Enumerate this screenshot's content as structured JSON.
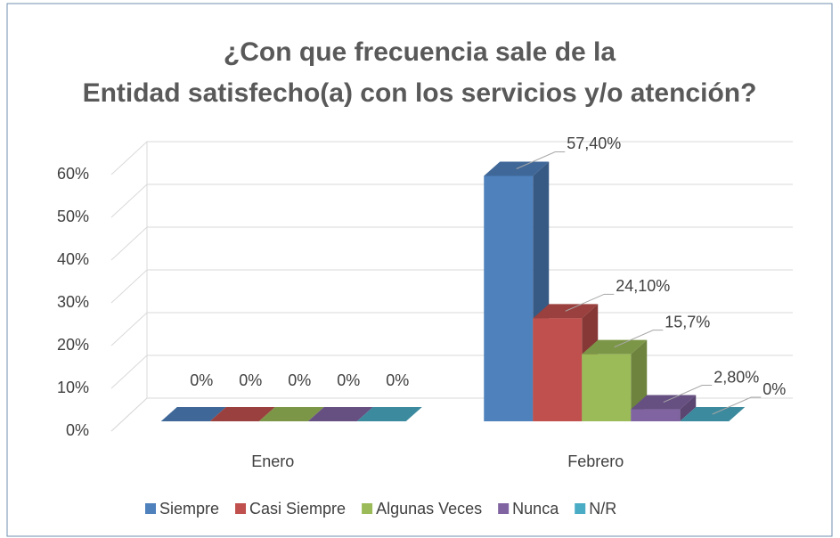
{
  "chart_data": {
    "type": "bar3d",
    "title": "¿Con que frecuencia sale de la Entidad satisfecho(a) con los servicios y/o atención?",
    "categories": [
      "Enero",
      "Febrero"
    ],
    "series": [
      {
        "name": "Siempre",
        "color": "#4f81bd",
        "values": [
          0,
          57.4
        ],
        "value_labels": [
          "0%",
          "57,40%"
        ]
      },
      {
        "name": "Casi Siempre",
        "color": "#c0504d",
        "values": [
          0,
          24.1
        ],
        "value_labels": [
          "0%",
          "24,10%"
        ]
      },
      {
        "name": "Algunas Veces",
        "color": "#9bbb59",
        "values": [
          0,
          15.7
        ],
        "value_labels": [
          "0%",
          "15,7%"
        ]
      },
      {
        "name": "Nunca",
        "color": "#8064a2",
        "values": [
          0,
          2.8
        ],
        "value_labels": [
          "0%",
          "2,80%"
        ]
      },
      {
        "name": "N/R",
        "color": "#4bacc6",
        "values": [
          0,
          0
        ],
        "value_labels": [
          "0%",
          "0%"
        ]
      }
    ],
    "ylim": [
      0,
      60
    ],
    "yticks": [
      {
        "value": 0,
        "label": "0%"
      },
      {
        "value": 10,
        "label": "10%"
      },
      {
        "value": 20,
        "label": "20%"
      },
      {
        "value": 30,
        "label": "30%"
      },
      {
        "value": 40,
        "label": "40%"
      },
      {
        "value": 50,
        "label": "50%"
      },
      {
        "value": 60,
        "label": "60%"
      }
    ],
    "grid": true,
    "legend": "bottom"
  }
}
